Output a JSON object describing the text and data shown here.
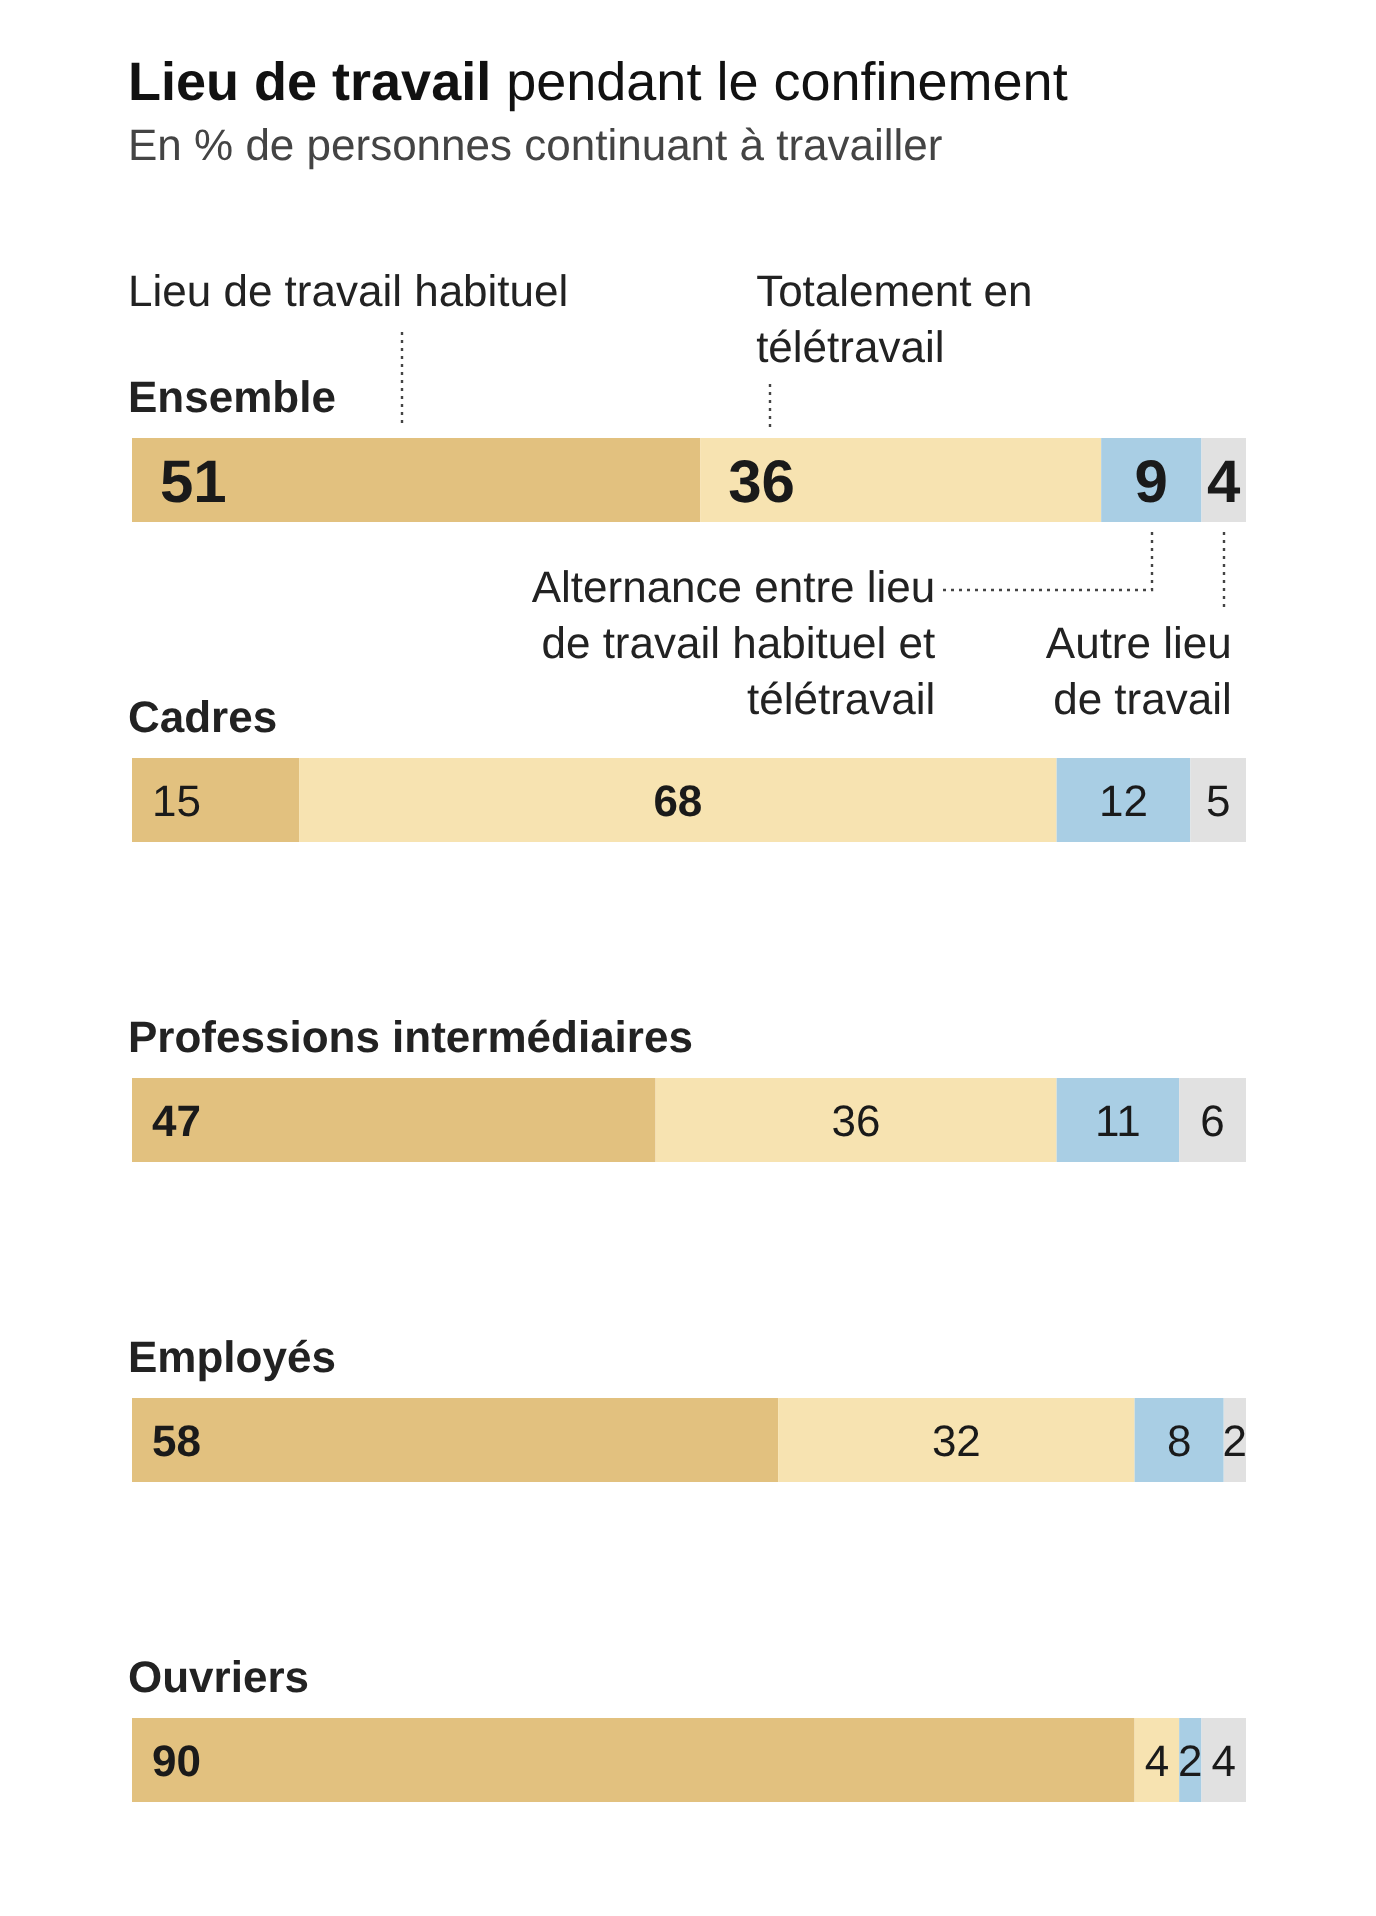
{
  "chart_data": {
    "type": "bar",
    "orientation": "horizontal",
    "stacked": true,
    "title": "Lieu de travail pendant le confinement",
    "subtitle": "En % de personnes continuant à travailler",
    "categories": [
      "Ensemble",
      "Cadres",
      "Professions intermédiaires",
      "Employés",
      "Ouvriers"
    ],
    "data_labels": true,
    "series": [
      {
        "name": "Lieu de travail habituel",
        "color": "#e2c17f",
        "values": [
          51,
          15,
          47,
          58,
          90
        ]
      },
      {
        "name": "Totalement en télétravail",
        "color": "#f7e3b1",
        "values": [
          36,
          68,
          36,
          32,
          4
        ]
      },
      {
        "name": "Alternance entre lieu de travail habituel et télétravail",
        "color": "#a9cee4",
        "values": [
          9,
          12,
          11,
          8,
          2
        ]
      },
      {
        "name": "Autre lieu de travail",
        "color": "#e1e1e1",
        "values": [
          4,
          5,
          6,
          2,
          4
        ]
      }
    ]
  }
}
